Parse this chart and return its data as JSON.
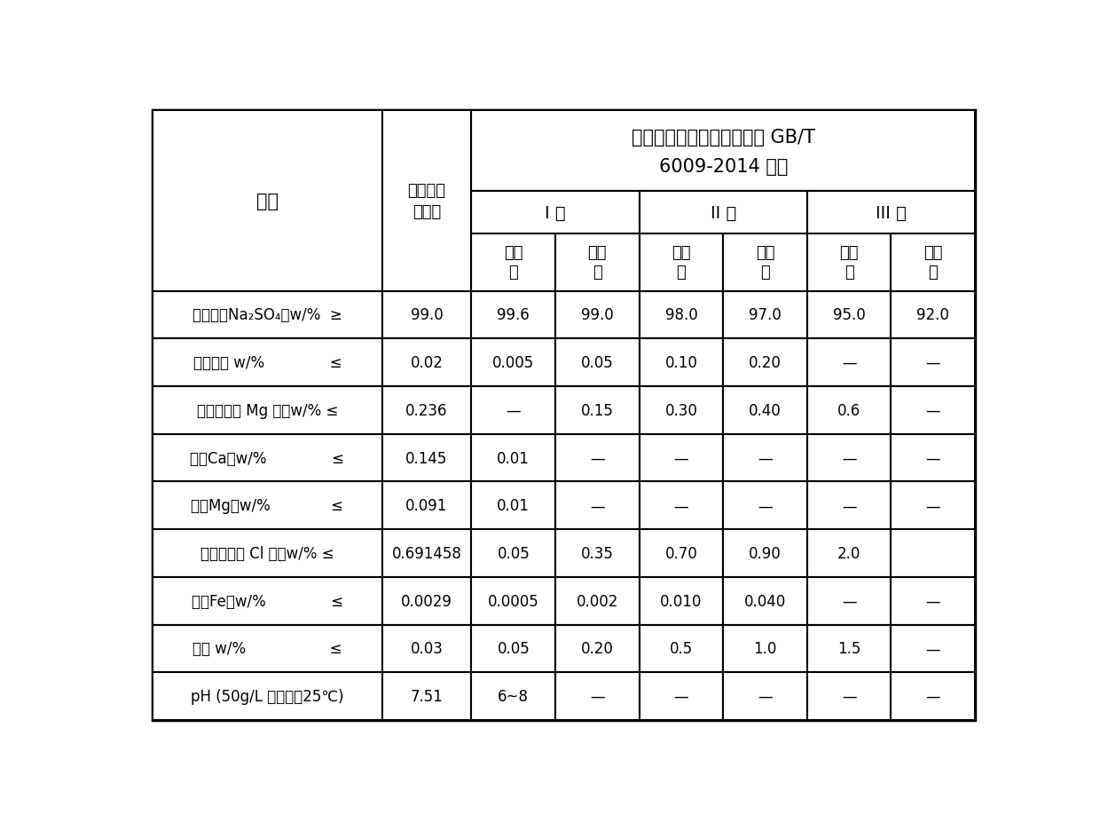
{
  "title_line1": "工业级无水硫酸钠国家标准 GB/T",
  "title_line2": "6009-2014 指标",
  "col_header_1": "项目",
  "col_header_2_line1": "无水硫酸",
  "col_header_2_line2": "钠产品",
  "class_headers": [
    "I 类",
    "II 类",
    "III 类"
  ],
  "sub_headers": [
    [
      "优等",
      "品"
    ],
    [
      "一等",
      "品"
    ],
    [
      "一等",
      "品"
    ],
    [
      "合格",
      "品"
    ],
    [
      "一等",
      "品"
    ],
    [
      "合格",
      "品"
    ]
  ],
  "row_labels": [
    "硫酸钠（Na₂SO₄）w/%  ≥",
    "水不溶物 w/%              ≤",
    "钙和镁（以 Mg 计）w/% ≤",
    "钙（Ca）w/%              ≤",
    "镁（Mg）w/%             ≤",
    "氯化物（以 Cl 计）w/% ≤",
    "铁（Fe）w/%              ≤",
    "水分 w/%                  ≤",
    "pH (50g/L 水溶液，25℃)"
  ],
  "col2_values": [
    "99.0",
    "0.02",
    "0.236",
    "0.145",
    "0.091",
    "0.691458",
    "0.0029",
    "0.03",
    "7.51"
  ],
  "data_values": [
    [
      "99.6",
      "99.0",
      "98.0",
      "97.0",
      "95.0",
      "92.0"
    ],
    [
      "0.005",
      "0.05",
      "0.10",
      "0.20",
      "—",
      "—"
    ],
    [
      "—",
      "0.15",
      "0.30",
      "0.40",
      "0.6",
      "—"
    ],
    [
      "0.01",
      "—",
      "—",
      "—",
      "—",
      "—"
    ],
    [
      "0.01",
      "—",
      "—",
      "—",
      "—",
      "—"
    ],
    [
      "0.05",
      "0.35",
      "0.70",
      "0.90",
      "2.0",
      ""
    ],
    [
      "0.0005",
      "0.002",
      "0.010",
      "0.040",
      "—",
      "—"
    ],
    [
      "0.05",
      "0.20",
      "0.5",
      "1.0",
      "1.5",
      "—"
    ],
    [
      "6~8",
      "—",
      "—",
      "—",
      "—",
      "—"
    ]
  ],
  "background_color": "#ffffff",
  "border_color": "#000000",
  "text_color": "#000000"
}
